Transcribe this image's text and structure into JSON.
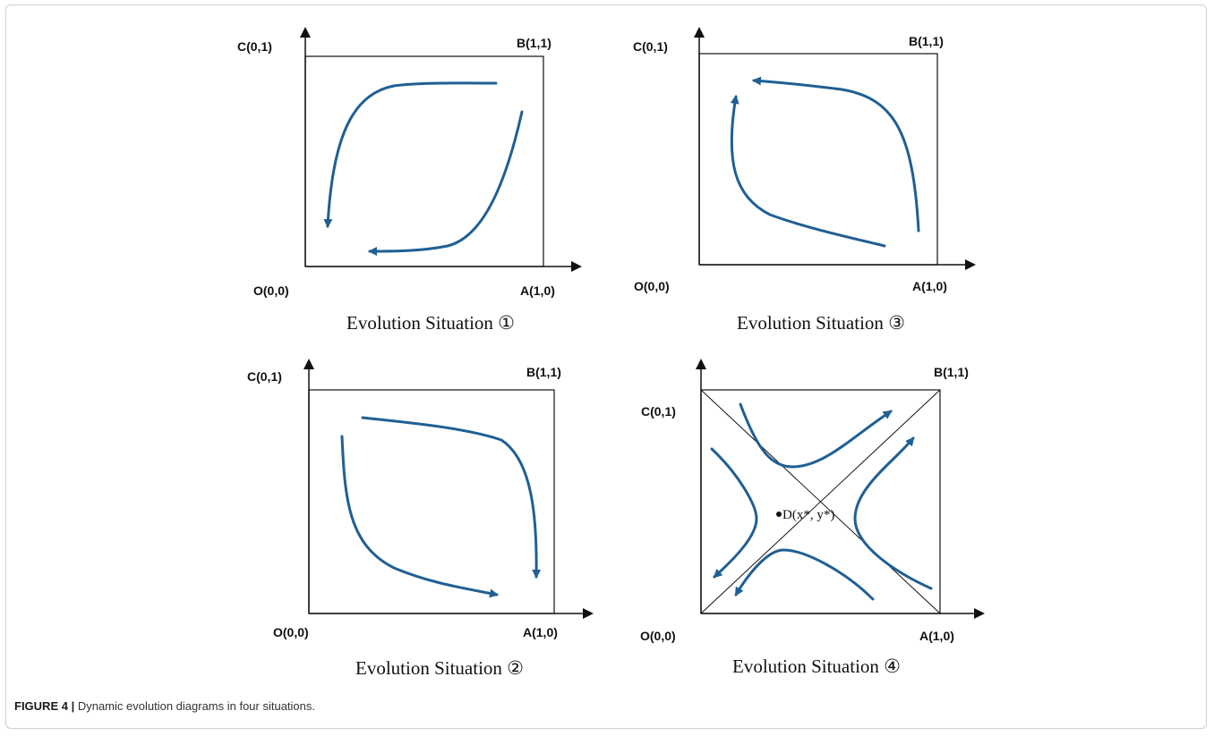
{
  "caption": {
    "label": "FIGURE 4 |",
    "text": "Dynamic evolution diagrams in four situations."
  },
  "colors": {
    "curve": "#1f5f94",
    "axis": "#111111",
    "frame_border": "#cfcfcf"
  },
  "panels": [
    {
      "id": "situation-1",
      "title": "Evolution  Situation ①",
      "labels": {
        "origin": "O(0,0)",
        "a": "A(1,0)",
        "b": "B(1,1)",
        "c": "C(0,1)"
      }
    },
    {
      "id": "situation-3",
      "title": "Evolution  Situation ③",
      "labels": {
        "origin": "O(0,0)",
        "a": "A(1,0)",
        "b": "B(1,1)",
        "c": "C(0,1)"
      }
    },
    {
      "id": "situation-2",
      "title": "Evolution  Situation ②",
      "labels": {
        "origin": "O(0,0)",
        "a": "A(1,0)",
        "b": "B(1,1)",
        "c": "C(0,1)"
      }
    },
    {
      "id": "situation-4",
      "title": "Evolution  Situation ④",
      "labels": {
        "origin": "O(0,0)",
        "a": "A(1,0)",
        "b": "B(1,1)",
        "c": "C(0,1)"
      },
      "saddle_label": "D(x*, y*)"
    }
  ]
}
